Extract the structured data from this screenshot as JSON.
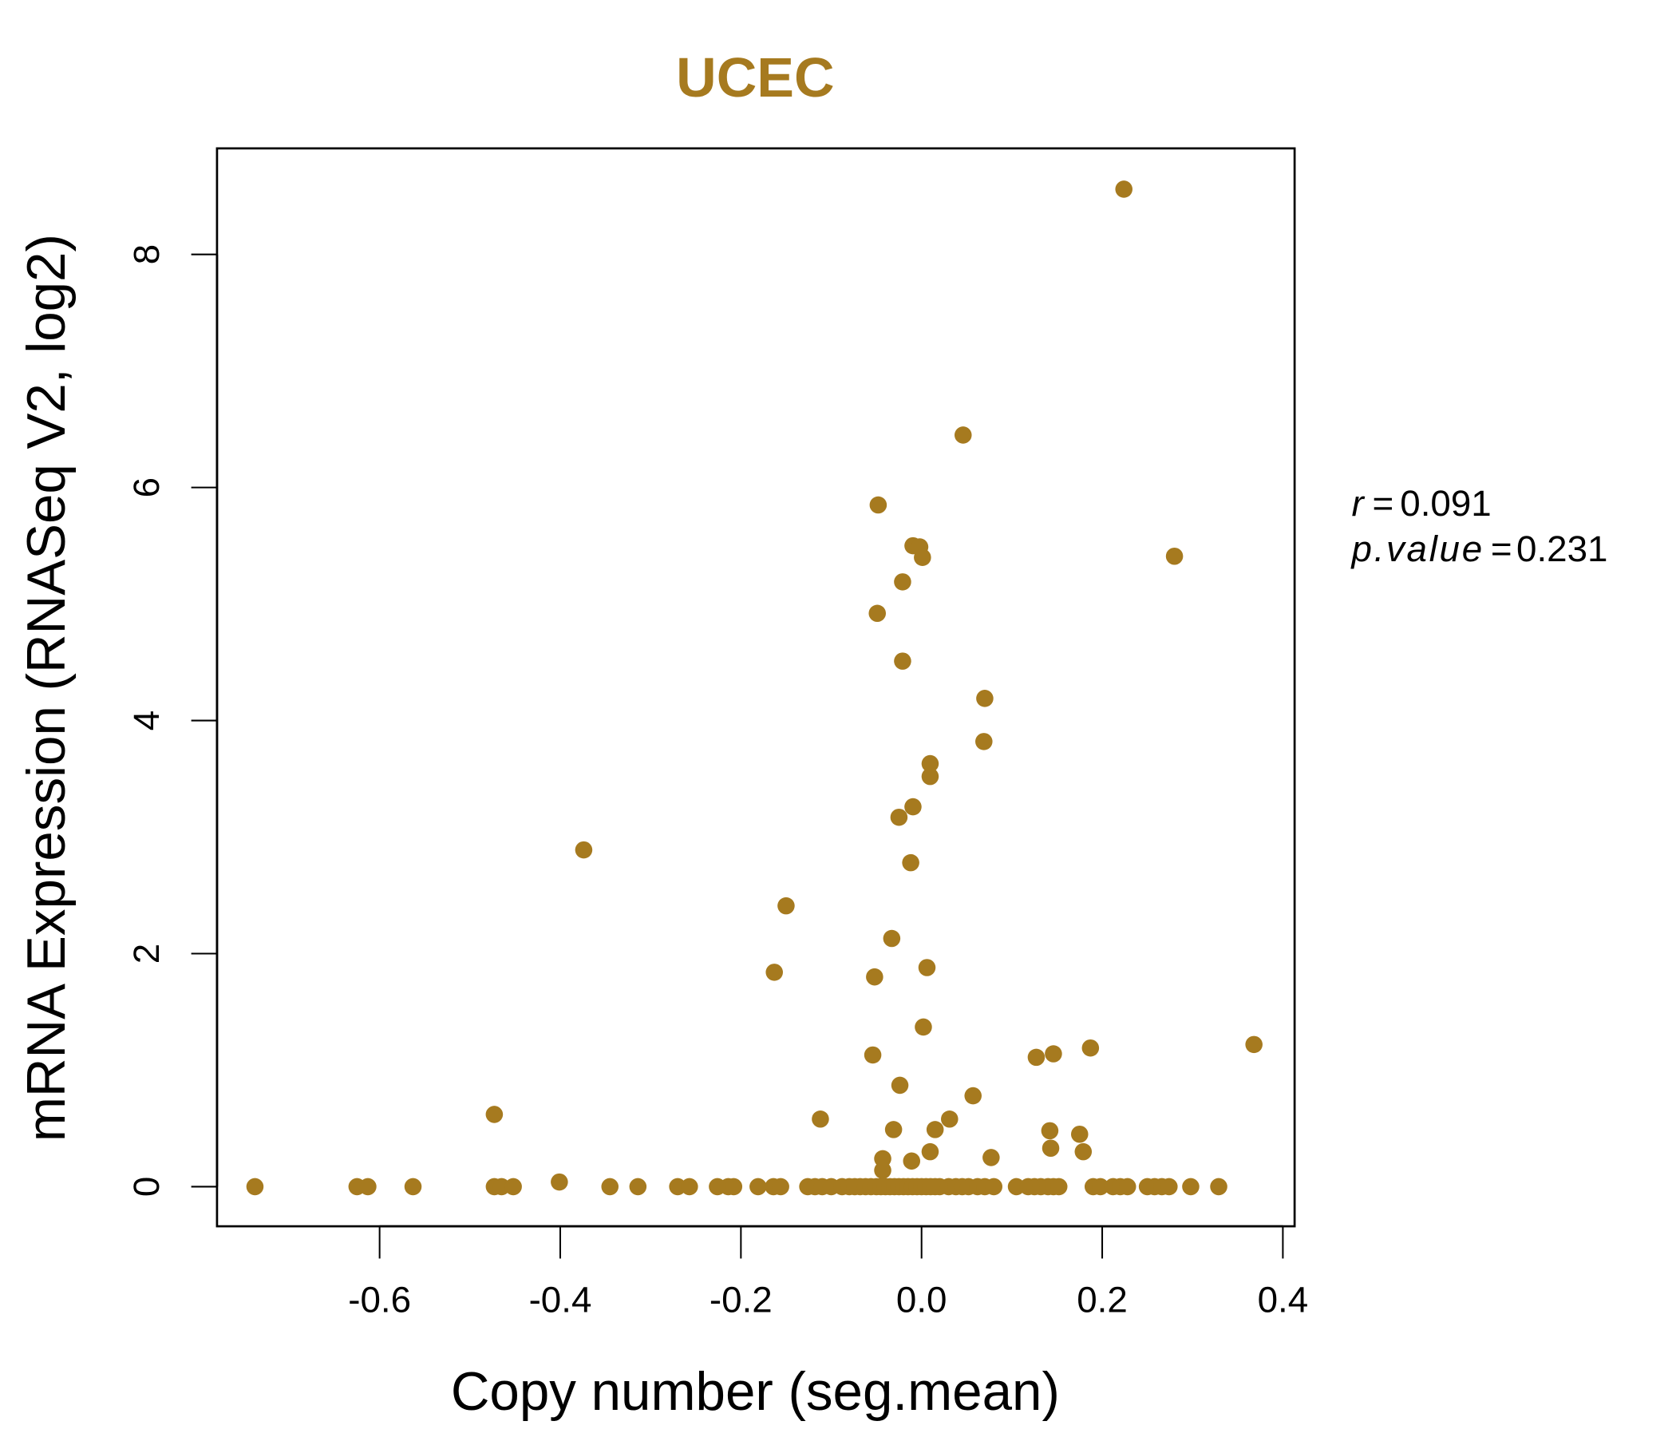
{
  "chart_data": {
    "type": "scatter",
    "title": "UCEC",
    "xlabel": "Copy number (seg.mean)",
    "ylabel": "mRNA Expression (RNASeq V2, log2)",
    "xlim": [
      -0.78,
      0.413
    ],
    "ylim": [
      -0.34,
      8.91
    ],
    "xticks": [
      -0.6,
      -0.4,
      -0.2,
      0.0,
      0.2,
      0.4
    ],
    "xtick_labels": [
      "-0.6",
      "-0.4",
      "-0.2",
      "0.0",
      "0.2",
      "0.4"
    ],
    "yticks": [
      0,
      2,
      4,
      6,
      8
    ],
    "ytick_labels": [
      "0",
      "2",
      "4",
      "6",
      "8"
    ],
    "grid": false,
    "color": "#A67A1F",
    "annotation": {
      "r_label": "r",
      "r_value": "0.091",
      "p_label": "p.value",
      "p_value": "0.231",
      "eq": "="
    },
    "points": [
      [
        -0.738,
        0
      ],
      [
        -0.625,
        0
      ],
      [
        -0.613,
        0
      ],
      [
        -0.563,
        0
      ],
      [
        -0.473,
        0.62
      ],
      [
        -0.473,
        0
      ],
      [
        -0.465,
        0
      ],
      [
        -0.452,
        0
      ],
      [
        -0.401,
        0.04
      ],
      [
        -0.374,
        2.89
      ],
      [
        -0.345,
        0
      ],
      [
        -0.314,
        0
      ],
      [
        -0.27,
        0
      ],
      [
        -0.257,
        0
      ],
      [
        -0.226,
        0
      ],
      [
        -0.214,
        0
      ],
      [
        -0.208,
        0
      ],
      [
        -0.181,
        0
      ],
      [
        -0.164,
        0
      ],
      [
        -0.156,
        0
      ],
      [
        -0.163,
        1.84
      ],
      [
        -0.15,
        2.41
      ],
      [
        -0.112,
        0.58
      ],
      [
        -0.126,
        0
      ],
      [
        -0.118,
        0
      ],
      [
        -0.11,
        0
      ],
      [
        -0.1,
        0
      ],
      [
        -0.088,
        0
      ],
      [
        -0.08,
        0
      ],
      [
        -0.074,
        0
      ],
      [
        -0.068,
        0
      ],
      [
        -0.062,
        0
      ],
      [
        -0.056,
        0
      ],
      [
        -0.05,
        0
      ],
      [
        -0.045,
        0
      ],
      [
        -0.04,
        0
      ],
      [
        -0.035,
        0
      ],
      [
        -0.03,
        0
      ],
      [
        -0.025,
        0
      ],
      [
        -0.02,
        0
      ],
      [
        -0.015,
        0
      ],
      [
        -0.01,
        0
      ],
      [
        -0.005,
        0
      ],
      [
        0,
        0
      ],
      [
        0.005,
        0
      ],
      [
        0.01,
        0
      ],
      [
        0.015,
        0
      ],
      [
        0.02,
        0
      ],
      [
        0.03,
        0
      ],
      [
        0.038,
        0
      ],
      [
        0.045,
        0
      ],
      [
        0.052,
        0
      ],
      [
        0.062,
        0
      ],
      [
        0.07,
        0
      ],
      [
        0.08,
        0
      ],
      [
        -0.048,
        5.85
      ],
      [
        -0.049,
        4.92
      ],
      [
        -0.0095,
        5.5
      ],
      [
        -0.002,
        5.49
      ],
      [
        0.001,
        5.4
      ],
      [
        -0.021,
        5.19
      ],
      [
        -0.021,
        4.51
      ],
      [
        0.046,
        6.45
      ],
      [
        0.07,
        4.19
      ],
      [
        0.069,
        3.82
      ],
      [
        0.0095,
        3.63
      ],
      [
        0.0095,
        3.52
      ],
      [
        -0.0095,
        3.26
      ],
      [
        -0.025,
        3.17
      ],
      [
        -0.012,
        2.78
      ],
      [
        -0.033,
        2.13
      ],
      [
        0.006,
        1.88
      ],
      [
        -0.052,
        1.8
      ],
      [
        0.002,
        1.37
      ],
      [
        -0.054,
        1.13
      ],
      [
        -0.024,
        0.87
      ],
      [
        0.057,
        0.78
      ],
      [
        0.031,
        0.58
      ],
      [
        0.015,
        0.49
      ],
      [
        -0.031,
        0.49
      ],
      [
        0.0095,
        0.3
      ],
      [
        -0.043,
        0.24
      ],
      [
        -0.011,
        0.22
      ],
      [
        -0.043,
        0.14
      ],
      [
        0.077,
        0.25
      ],
      [
        0.127,
        1.11
      ],
      [
        0.146,
        1.14
      ],
      [
        0.187,
        1.19
      ],
      [
        0.142,
        0.48
      ],
      [
        0.175,
        0.45
      ],
      [
        0.143,
        0.33
      ],
      [
        0.179,
        0.3
      ],
      [
        0.224,
        8.56
      ],
      [
        0.28,
        5.41
      ],
      [
        0.368,
        1.22
      ],
      [
        0.105,
        0
      ],
      [
        0.118,
        0
      ],
      [
        0.125,
        0
      ],
      [
        0.132,
        0
      ],
      [
        0.14,
        0
      ],
      [
        0.146,
        0
      ],
      [
        0.152,
        0
      ],
      [
        0.19,
        0
      ],
      [
        0.198,
        0
      ],
      [
        0.212,
        0
      ],
      [
        0.22,
        0
      ],
      [
        0.228,
        0
      ],
      [
        0.25,
        0
      ],
      [
        0.258,
        0
      ],
      [
        0.266,
        0
      ],
      [
        0.274,
        0
      ],
      [
        0.298,
        0
      ],
      [
        0.329,
        0
      ]
    ]
  }
}
